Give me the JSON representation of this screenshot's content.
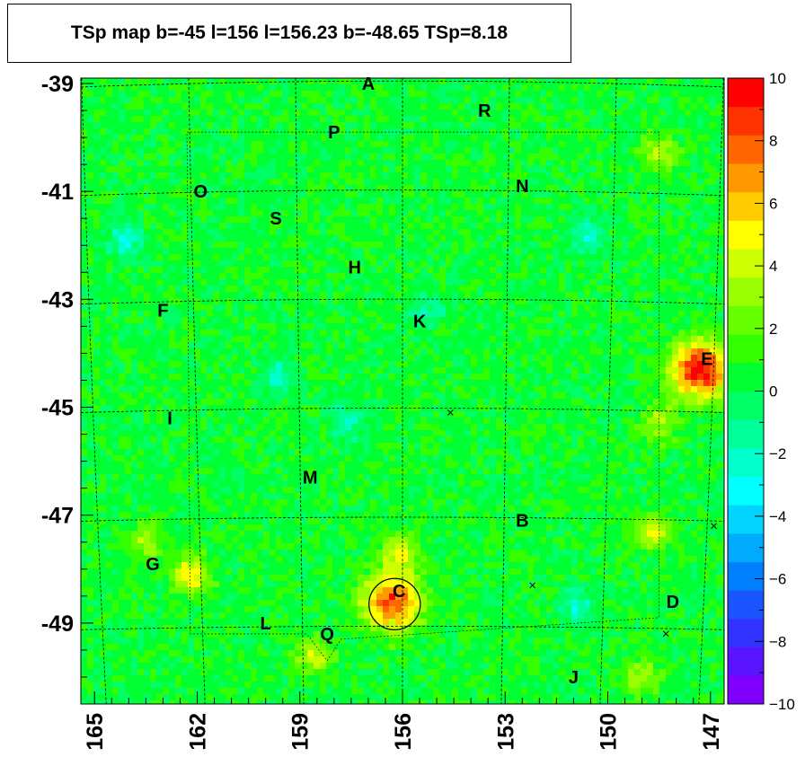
{
  "title": "TSp map b=-45 l=156 l=156.23 b=-48.65 TSp=8.18",
  "chart_data": {
    "type": "heatmap",
    "title": "TSp map b=-45 l=156 l=156.23 b=-48.65 TSp=8.18",
    "xlabel": "",
    "ylabel": "",
    "x_ticks": [
      "165",
      "162",
      "159",
      "156",
      "153",
      "150",
      "147"
    ],
    "x_tick_values": [
      165,
      162,
      159,
      156,
      153,
      150,
      147
    ],
    "y_ticks": [
      "-39",
      "-41",
      "-43",
      "-45",
      "-47",
      "-49"
    ],
    "y_tick_values": [
      -39,
      -41,
      -43,
      -45,
      -47,
      -49
    ],
    "xlim": [
      165.4,
      146.6
    ],
    "ylim": [
      -50.5,
      -38.9
    ],
    "x_reversed": true,
    "colorbar": {
      "ticks": [
        "10",
        "8",
        "6",
        "4",
        "2",
        "0",
        "−2",
        "−4",
        "−6",
        "−8",
        "−10"
      ],
      "tick_values": [
        10,
        8,
        6,
        4,
        2,
        0,
        -2,
        -4,
        -6,
        -8,
        -10
      ],
      "range": [
        -10,
        10
      ],
      "colors": [
        "#7f00ff",
        "#5a14ff",
        "#3333ff",
        "#1a55ff",
        "#0080ff",
        "#00aaff",
        "#00d4ff",
        "#00ffff",
        "#00ffcc",
        "#00ff99",
        "#00ff66",
        "#00ff33",
        "#33ff00",
        "#66ff00",
        "#99ff00",
        "#ccff00",
        "#ffff00",
        "#ffcc00",
        "#ff9900",
        "#ff6600",
        "#ff3300",
        "#ff0000"
      ]
    },
    "background_value": 0.5,
    "hotspots": [
      {
        "l": 147.3,
        "b": -44.3,
        "value": 9.5
      },
      {
        "l": 156.3,
        "b": -48.6,
        "value": 8.2
      },
      {
        "l": 162.2,
        "b": -48.1,
        "value": 5
      },
      {
        "l": 156.1,
        "b": -47.7,
        "value": 4
      },
      {
        "l": 148.7,
        "b": -47.3,
        "value": 4
      },
      {
        "l": 149.0,
        "b": -50.0,
        "value": 3
      },
      {
        "l": 148.5,
        "b": -40.3,
        "value": 3.5
      },
      {
        "l": 148.5,
        "b": -45.3,
        "value": 3
      },
      {
        "l": 158.6,
        "b": -49.6,
        "value": 3.5
      },
      {
        "l": 163.5,
        "b": -47.5,
        "value": 3
      }
    ],
    "cold_spots": [
      {
        "l": 164.1,
        "b": -41.9,
        "value": -3
      },
      {
        "l": 150.6,
        "b": -41.8,
        "value": -3
      },
      {
        "l": 157.6,
        "b": -45.3,
        "value": -2.5
      },
      {
        "l": 159.6,
        "b": -44.4,
        "value": -2.5
      },
      {
        "l": 155.3,
        "b": -43.2,
        "value": -2
      },
      {
        "l": 150.9,
        "b": -48.7,
        "value": -2.5
      }
    ],
    "sources": [
      {
        "name": "A",
        "l": 157.0,
        "b": -39.0
      },
      {
        "name": "R",
        "l": 153.6,
        "b": -39.5
      },
      {
        "name": "P",
        "l": 158.0,
        "b": -39.9
      },
      {
        "name": "N",
        "l": 152.5,
        "b": -40.9
      },
      {
        "name": "O",
        "l": 161.9,
        "b": -41.0
      },
      {
        "name": "S",
        "l": 159.7,
        "b": -41.5
      },
      {
        "name": "H",
        "l": 157.4,
        "b": -42.4
      },
      {
        "name": "K",
        "l": 155.5,
        "b": -43.4
      },
      {
        "name": "F",
        "l": 163.0,
        "b": -43.2
      },
      {
        "name": "E",
        "l": 147.1,
        "b": -44.1
      },
      {
        "name": "I",
        "l": 162.8,
        "b": -45.2
      },
      {
        "name": "M",
        "l": 158.7,
        "b": -46.3
      },
      {
        "name": "B",
        "l": 152.5,
        "b": -47.1
      },
      {
        "name": "G",
        "l": 163.3,
        "b": -47.9
      },
      {
        "name": "C",
        "l": 156.1,
        "b": -48.4
      },
      {
        "name": "D",
        "l": 148.1,
        "b": -48.6
      },
      {
        "name": "L",
        "l": 160.0,
        "b": -49.0
      },
      {
        "name": "Q",
        "l": 158.2,
        "b": -49.2
      },
      {
        "name": "J",
        "l": 151.0,
        "b": -50.0
      }
    ],
    "crosses": [
      {
        "l": 154.6,
        "b": -45.1
      },
      {
        "l": 152.2,
        "b": -48.3
      },
      {
        "l": 148.3,
        "b": -49.2
      },
      {
        "l": 146.9,
        "b": -47.2
      }
    ],
    "circle": {
      "l": 156.23,
      "b": -48.65,
      "radius_deg": 0.6
    }
  }
}
